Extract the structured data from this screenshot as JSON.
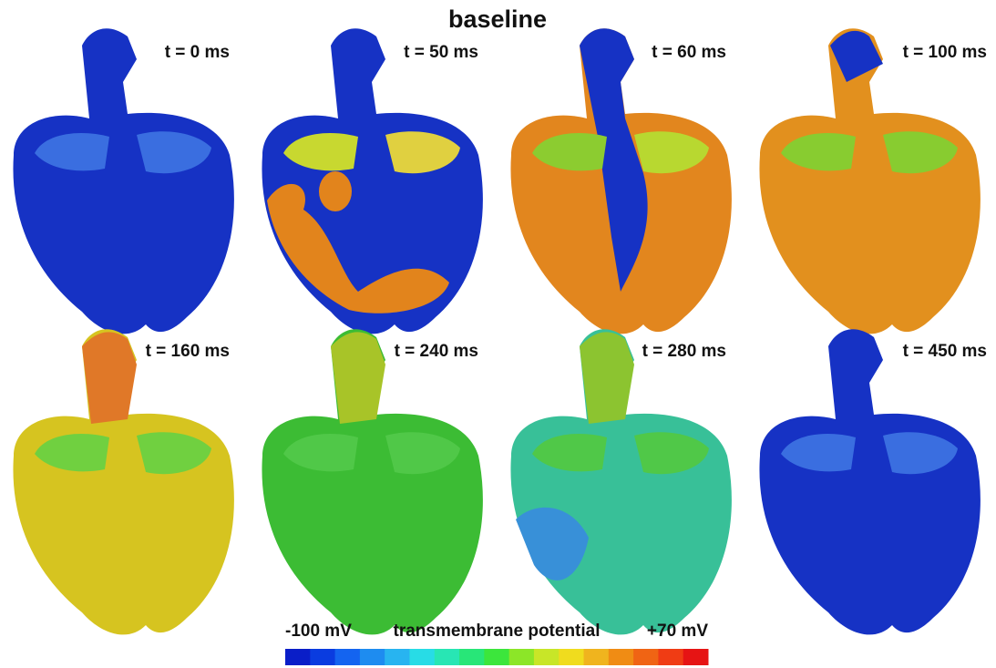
{
  "title": "baseline",
  "panels": [
    "t = 0 ms",
    "t = 50 ms",
    "t = 60 ms",
    "t = 100 ms",
    "t = 160 ms",
    "t = 240 ms",
    "t = 280 ms",
    "t = 450 ms"
  ],
  "colorbar": {
    "min_label": "-100 mV",
    "title": "transmembrane potential",
    "max_label": "+70 mV"
  }
}
